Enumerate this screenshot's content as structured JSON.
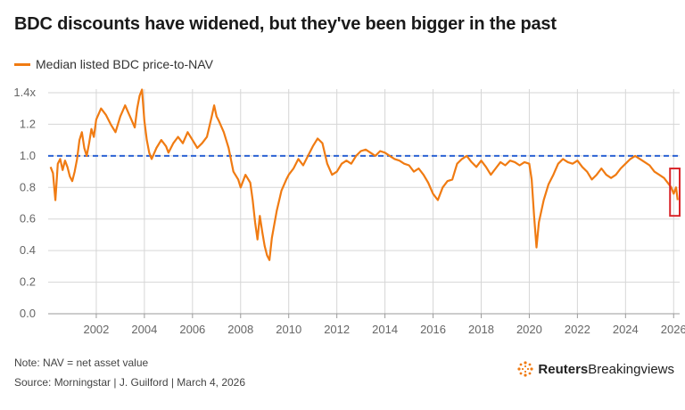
{
  "title": "BDC discounts have widened, but they've been bigger in the past",
  "note": "Note: NAV = net asset value",
  "source": "Source: Morningstar | J. Guilford | March 4, 2026",
  "brand": {
    "part1": "Reuters",
    "part2": "Breakingviews"
  },
  "colors": {
    "series": "#f07b12",
    "reference": "#2b62d4",
    "highlight": "#d9262b",
    "grid": "#d6d6d6",
    "axis": "#9a9a9a"
  },
  "chart_data": {
    "type": "line",
    "title": "BDC discounts have widened, but they've been bigger in the past",
    "xlabel": "",
    "ylabel": "",
    "xlim": [
      2000.0,
      2026.25
    ],
    "ylim": [
      0,
      1.4
    ],
    "grid": true,
    "legend": "top-left",
    "x_ticks": [
      2002,
      2004,
      2006,
      2008,
      2010,
      2012,
      2014,
      2016,
      2018,
      2020,
      2022,
      2024,
      2026
    ],
    "x_tick_labels": [
      "2002",
      "2004",
      "2006",
      "2008",
      "2010",
      "2012",
      "2014",
      "2016",
      "2018",
      "2020",
      "2022",
      "2024",
      "2026"
    ],
    "y_ticks": [
      0,
      0.2,
      0.4,
      0.6,
      0.8,
      1.0,
      1.2,
      1.4
    ],
    "y_tick_labels": [
      "0.0",
      "0.2",
      "0.4",
      "0.6",
      "0.8",
      "1.0",
      "1.2",
      "1.4x"
    ],
    "reference_line": {
      "y": 1.0,
      "style": "dashed"
    },
    "highlight_box": {
      "x": [
        2025.85,
        2026.25
      ],
      "y": [
        0.62,
        0.92
      ]
    },
    "series": [
      {
        "name": "Median listed BDC price-to-NAV",
        "x": [
          2000.1,
          2000.2,
          2000.3,
          2000.4,
          2000.5,
          2000.6,
          2000.7,
          2000.8,
          2000.9,
          2001.0,
          2001.1,
          2001.2,
          2001.3,
          2001.4,
          2001.5,
          2001.6,
          2001.7,
          2001.8,
          2001.9,
          2002.0,
          2002.2,
          2002.4,
          2002.6,
          2002.8,
          2003.0,
          2003.2,
          2003.4,
          2003.6,
          2003.7,
          2003.8,
          2003.9,
          2004.0,
          2004.1,
          2004.2,
          2004.3,
          2004.5,
          2004.7,
          2004.9,
          2005.0,
          2005.2,
          2005.4,
          2005.6,
          2005.8,
          2006.0,
          2006.2,
          2006.4,
          2006.6,
          2006.8,
          2006.9,
          2007.0,
          2007.1,
          2007.3,
          2007.5,
          2007.7,
          2007.9,
          2008.0,
          2008.2,
          2008.4,
          2008.5,
          2008.6,
          2008.7,
          2008.8,
          2008.9,
          2009.0,
          2009.1,
          2009.2,
          2009.3,
          2009.5,
          2009.7,
          2009.9,
          2010.0,
          2010.2,
          2010.4,
          2010.6,
          2010.8,
          2011.0,
          2011.2,
          2011.4,
          2011.6,
          2011.8,
          2012.0,
          2012.2,
          2012.4,
          2012.6,
          2012.8,
          2013.0,
          2013.2,
          2013.4,
          2013.6,
          2013.8,
          2014.0,
          2014.2,
          2014.4,
          2014.6,
          2014.8,
          2015.0,
          2015.2,
          2015.4,
          2015.6,
          2015.8,
          2016.0,
          2016.2,
          2016.4,
          2016.6,
          2016.8,
          2017.0,
          2017.2,
          2017.4,
          2017.6,
          2017.8,
          2018.0,
          2018.2,
          2018.4,
          2018.6,
          2018.8,
          2019.0,
          2019.2,
          2019.4,
          2019.6,
          2019.8,
          2020.0,
          2020.1,
          2020.2,
          2020.3,
          2020.4,
          2020.6,
          2020.8,
          2021.0,
          2021.2,
          2021.4,
          2021.6,
          2021.8,
          2022.0,
          2022.2,
          2022.4,
          2022.6,
          2022.8,
          2023.0,
          2023.2,
          2023.4,
          2023.6,
          2023.8,
          2024.0,
          2024.2,
          2024.4,
          2024.6,
          2024.8,
          2025.0,
          2025.2,
          2025.4,
          2025.6,
          2025.8,
          2025.9,
          2026.0,
          2026.1,
          2026.17
        ],
        "values": [
          0.93,
          0.89,
          0.72,
          0.95,
          0.98,
          0.91,
          0.97,
          0.93,
          0.87,
          0.84,
          0.9,
          0.98,
          1.1,
          1.15,
          1.05,
          1.0,
          1.08,
          1.17,
          1.12,
          1.23,
          1.3,
          1.26,
          1.2,
          1.15,
          1.25,
          1.32,
          1.25,
          1.18,
          1.3,
          1.38,
          1.42,
          1.22,
          1.1,
          1.02,
          0.98,
          1.05,
          1.1,
          1.06,
          1.02,
          1.08,
          1.12,
          1.08,
          1.15,
          1.1,
          1.05,
          1.08,
          1.12,
          1.25,
          1.32,
          1.25,
          1.22,
          1.15,
          1.05,
          0.9,
          0.85,
          0.8,
          0.88,
          0.83,
          0.72,
          0.58,
          0.47,
          0.62,
          0.52,
          0.43,
          0.37,
          0.34,
          0.48,
          0.65,
          0.78,
          0.85,
          0.88,
          0.92,
          0.98,
          0.94,
          1.0,
          1.06,
          1.11,
          1.08,
          0.95,
          0.88,
          0.9,
          0.95,
          0.97,
          0.95,
          1.0,
          1.03,
          1.04,
          1.02,
          1.0,
          1.03,
          1.02,
          1.0,
          0.98,
          0.97,
          0.95,
          0.94,
          0.9,
          0.92,
          0.88,
          0.83,
          0.76,
          0.72,
          0.8,
          0.84,
          0.85,
          0.95,
          0.98,
          1.0,
          0.96,
          0.93,
          0.97,
          0.93,
          0.88,
          0.92,
          0.96,
          0.94,
          0.97,
          0.96,
          0.94,
          0.96,
          0.95,
          0.85,
          0.62,
          0.42,
          0.58,
          0.72,
          0.82,
          0.88,
          0.95,
          0.98,
          0.96,
          0.95,
          0.97,
          0.93,
          0.9,
          0.85,
          0.88,
          0.92,
          0.88,
          0.86,
          0.88,
          0.92,
          0.95,
          0.98,
          1.0,
          0.98,
          0.96,
          0.94,
          0.9,
          0.88,
          0.86,
          0.82,
          0.8,
          0.76,
          0.8,
          0.72
        ]
      }
    ]
  }
}
